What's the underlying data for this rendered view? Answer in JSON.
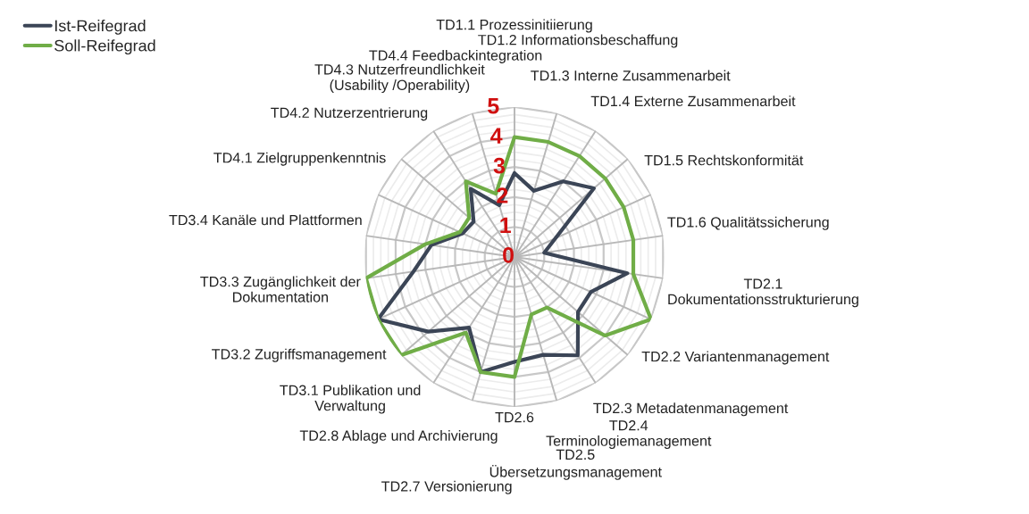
{
  "chart_data": {
    "type": "radar",
    "categories": [
      "TD1.1 Prozessinitiierung",
      "TD1.2 Informationsbeschaffung",
      "TD1.3 Interne Zusammenarbeit",
      "TD1.4 Externe Zusammenarbeit",
      "TD1.5 Rechtskonformität",
      "TD1.6 Qualitätssicherung",
      "TD2.1\nDokumentationsstrukturierung",
      "TD2.2 Variantenmanagement",
      "TD2.3 Metadatenmanagement",
      "TD2.4\nTerminologiemanagement",
      "TD2.5\nÜbersetzungsmanagement",
      "TD2.6",
      "TD2.7 Versionierung",
      "TD2.8 Ablage und Archivierung",
      "TD3.1 Publikation und\nVerwaltung",
      "TD3.2 Zugriffsmanagement",
      "TD3.3 Zugänglichkeit der\nDokumentation",
      "TD3.4 Kanäle und Plattformen",
      "TD4.1 Zielgruppenkenntnis",
      "TD4.2 Nutzerzentrierung",
      "TD4.3 Nutzerfreundlichkeit\n(Usability /Operability)",
      "TD4.4 Feedbackintegration"
    ],
    "series": [
      {
        "name": "Ist-Reifegrad",
        "color": "#3b4556",
        "values": [
          2.8,
          2.3,
          3,
          3.5,
          1.5,
          1,
          3.8,
          2.8,
          2.8,
          3.9,
          3.4,
          3.5,
          4,
          2.8,
          3.8,
          5,
          3.4,
          2.8,
          1.9,
          1.8,
          2.7,
          1.8
        ]
      },
      {
        "name": "Soll-Reifegrad",
        "color": "#70ad47",
        "values": [
          4,
          4,
          4,
          4,
          4,
          4,
          4,
          5,
          4,
          2,
          2,
          4,
          4,
          3,
          5,
          5,
          5,
          3,
          2,
          2,
          3,
          2.2
        ]
      }
    ],
    "ylim": [
      0,
      5
    ],
    "yticks": [
      0,
      1,
      2,
      3,
      4,
      5
    ],
    "grid": true,
    "legend": "top left",
    "marker": "none",
    "line_style": "solid"
  }
}
